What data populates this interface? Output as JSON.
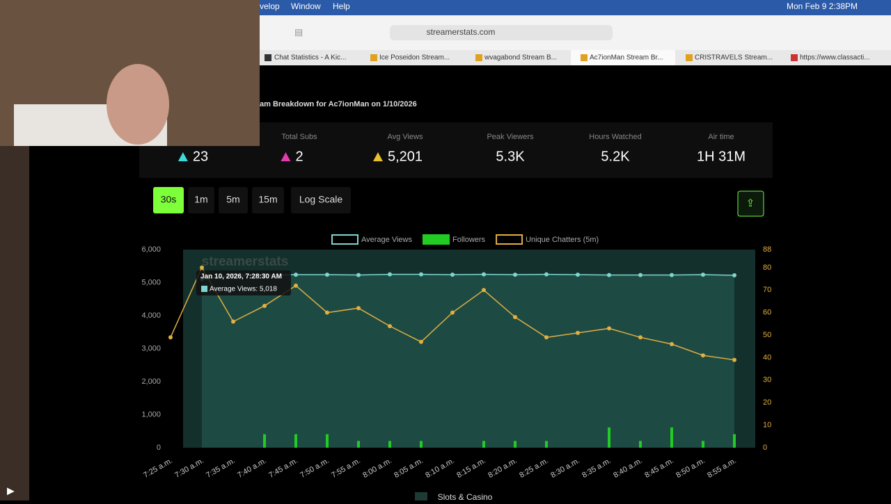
{
  "menu_bar": {
    "items": [
      "velop",
      "Window",
      "Help"
    ],
    "clock": "Mon Feb 9  2:38PM"
  },
  "browser": {
    "url": "streamerstats.com",
    "tabs": [
      "Chat Statistics - A Kic...",
      "Ice Poseidon Stream...",
      "wvagabond Stream B...",
      "Ac7ionMan Stream Br...",
      "CRISTRAVELS Stream...",
      "https://www.classacti..."
    ]
  },
  "page": {
    "heading": "am Breakdown for Ac7ionMan on 1/10/2026",
    "stats": [
      {
        "value": "23"
      },
      {
        "label": "Total Subs",
        "value": "2"
      },
      {
        "label": "Avg Views",
        "value": "5,201"
      },
      {
        "label": "Peak Viewers",
        "value": "5.3K"
      },
      {
        "label": "Hours Watched",
        "value": "5.2K"
      },
      {
        "label": "Air time",
        "value": "1H 31M"
      }
    ],
    "buttons": [
      "30s",
      "1m",
      "5m",
      "15m",
      "Log Scale"
    ],
    "watermark": "streamerstats",
    "tooltip": {
      "title": "Jan 10, 2026, 7:28:30 AM",
      "text": "Average Views: 5,018"
    },
    "footer": "Slots & Casino"
  },
  "chart_data": {
    "type": "line",
    "legend": "top",
    "categories": [
      "7:25 a.m.",
      "7:30 a.m.",
      "7:35 a.m.",
      "7:40 a.m.",
      "7:45 a.m.",
      "7:50 a.m.",
      "7:55 a.m.",
      "8:00 a.m.",
      "8:05 a.m.",
      "8:10 a.m.",
      "8:15 a.m.",
      "8:20 a.m.",
      "8:25 a.m.",
      "8:30 a.m.",
      "8:35 a.m.",
      "8:40 a.m.",
      "8:45 a.m.",
      "8:50 a.m.",
      "8:55 a.m."
    ],
    "ylim": [
      0,
      6000
    ],
    "yticks": [
      0,
      {
        "value": 1000,
        "label": "1,000"
      },
      {
        "value": 2000,
        "label": "2,000"
      },
      {
        "value": 3000,
        "label": "3,000"
      },
      {
        "value": 4000,
        "label": "4,000"
      },
      {
        "value": 5000,
        "label": "5,000"
      },
      {
        "value": 6000,
        "label": "6,000"
      }
    ],
    "y2lim": [
      0,
      88
    ],
    "y2ticks": [
      0,
      10,
      20,
      30,
      40,
      50,
      60,
      70,
      80,
      88
    ],
    "series": [
      {
        "name": "Average Views",
        "color": "#7fd6d0",
        "values": [
          null,
          5100,
          5220,
          5230,
          5240,
          5240,
          5230,
          5250,
          5250,
          5240,
          5250,
          5240,
          5250,
          5240,
          5230,
          5230,
          5230,
          5240,
          5220
        ]
      },
      {
        "name": "Followers",
        "type": "bar",
        "axis": "y2",
        "color": "#22cc22",
        "values": [
          0,
          0,
          0,
          6,
          6,
          6,
          3,
          3,
          3,
          0,
          3,
          3,
          3,
          0,
          9,
          3,
          9,
          3,
          6
        ]
      },
      {
        "name": "Unique Chatters (5m)",
        "axis": "y2",
        "color": "#e0b040",
        "values": [
          49,
          80,
          56,
          63,
          72,
          60,
          62,
          54,
          47,
          60,
          70,
          58,
          49,
          51,
          53,
          49,
          46,
          41,
          39
        ]
      }
    ]
  }
}
